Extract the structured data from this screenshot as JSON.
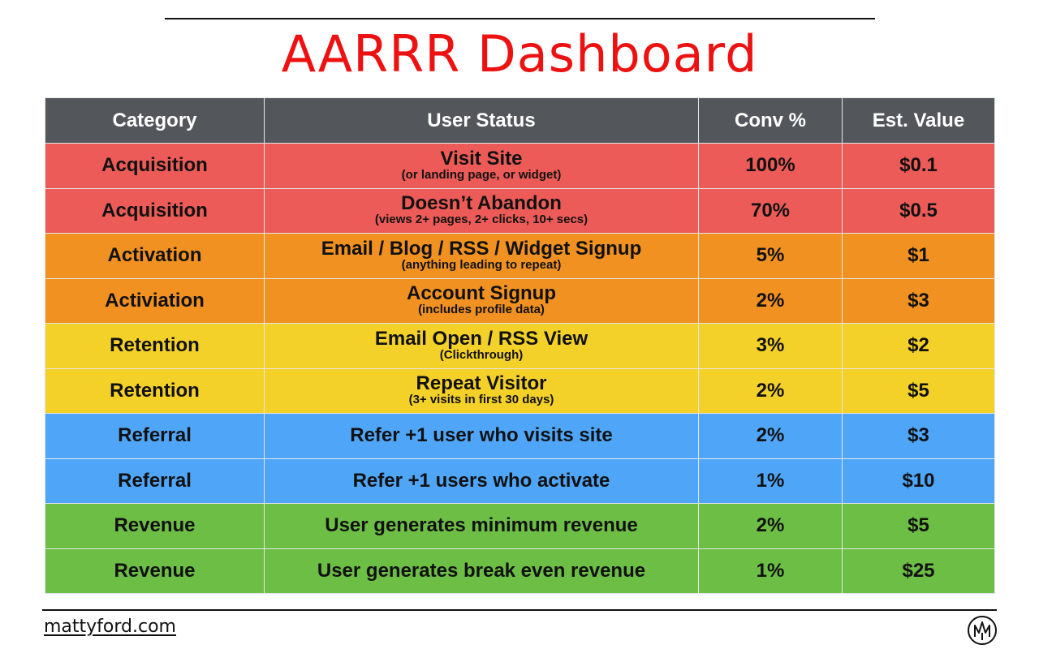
{
  "title": "AARRR Dashboard",
  "table": {
    "headers": [
      "Category",
      "User Status",
      "Conv %",
      "Est. Value"
    ],
    "rows": [
      {
        "category": "Acquisition",
        "status": "Visit Site",
        "status_sub": "(or landing page, or widget)",
        "conv": "100%",
        "value": "$0.1",
        "color": "#ec5b57"
      },
      {
        "category": "Acquisition",
        "status": "Doesn’t Abandon",
        "status_sub": "(views 2+ pages, 2+ clicks, 10+ secs)",
        "conv": "70%",
        "value": "$0.5",
        "color": "#ec5b57"
      },
      {
        "category": "Activation",
        "status": "Email / Blog / RSS / Widget Signup",
        "status_sub": "(anything leading to repeat)",
        "conv": "5%",
        "value": "$1",
        "color": "#f19121"
      },
      {
        "category": "Activiation",
        "status": "Account Signup",
        "status_sub": "(includes profile data)",
        "conv": "2%",
        "value": "$3",
        "color": "#f19121"
      },
      {
        "category": "Retention",
        "status": "Email Open / RSS View",
        "status_sub": "(Clickthrough)",
        "conv": "3%",
        "value": "$2",
        "color": "#f4d129"
      },
      {
        "category": "Retention",
        "status": "Repeat Visitor",
        "status_sub": "(3+ visits in first 30 days)",
        "conv": "2%",
        "value": "$5",
        "color": "#f4d129"
      },
      {
        "category": "Referral",
        "status": "Refer +1 user who visits site",
        "status_sub": "",
        "conv": "2%",
        "value": "$3",
        "color": "#4fa6f9"
      },
      {
        "category": "Referral",
        "status": "Refer +1 users who activate",
        "status_sub": "",
        "conv": "1%",
        "value": "$10",
        "color": "#4fa6f9"
      },
      {
        "category": "Revenue",
        "status": "User generates minimum revenue",
        "status_sub": "",
        "conv": "2%",
        "value": "$5",
        "color": "#6dbe45"
      },
      {
        "category": "Revenue",
        "status": "User generates break even revenue",
        "status_sub": "",
        "conv": "1%",
        "value": "$25",
        "color": "#6dbe45"
      }
    ]
  },
  "footer": {
    "link": "mattyford.com",
    "logo_icon": "monogram-logo-icon"
  }
}
